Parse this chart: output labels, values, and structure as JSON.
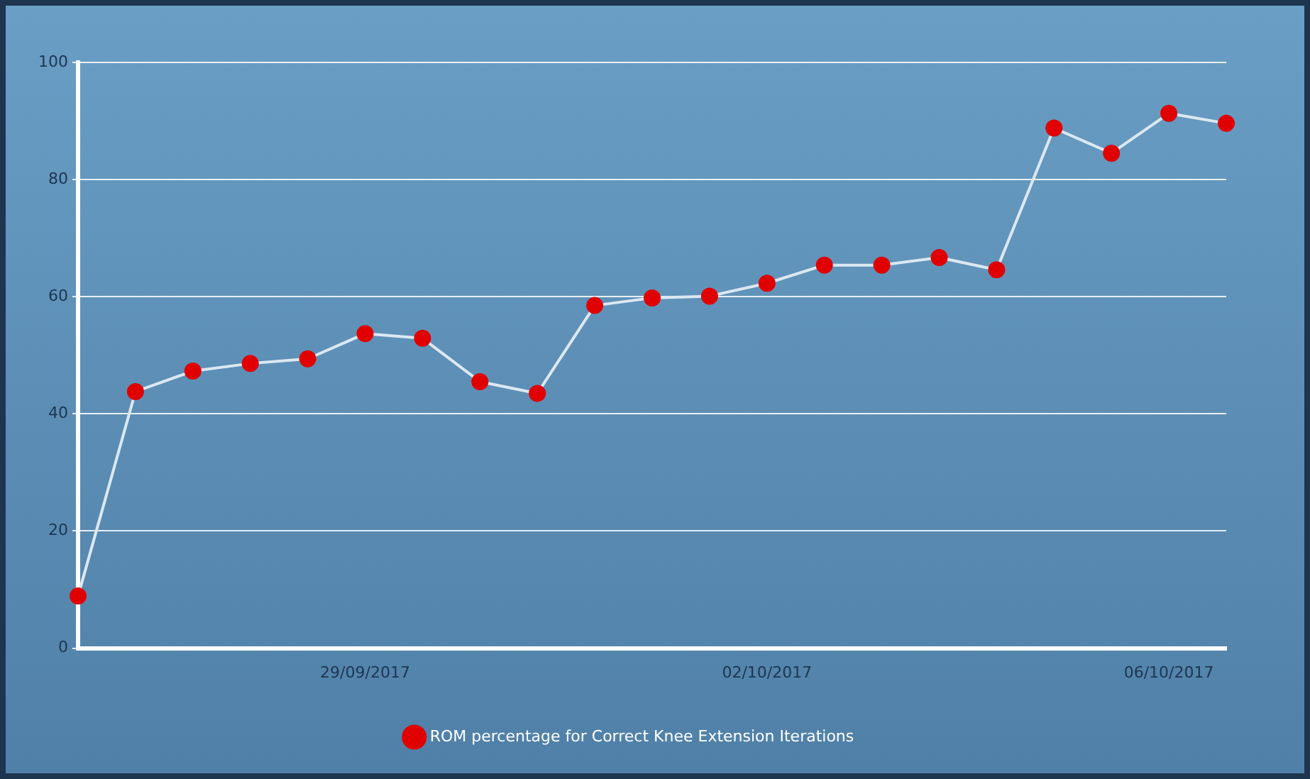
{
  "chart_data": {
    "type": "line",
    "categories": [
      null,
      null,
      null,
      null,
      null,
      "29/09/2017",
      null,
      null,
      null,
      null,
      null,
      null,
      "02/10/2017",
      null,
      null,
      null,
      null,
      null,
      null,
      "06/10/2017",
      null
    ],
    "series": [
      {
        "name": "ROM percentage for Correct Knee Extension Iterations",
        "color": "#dce8f2",
        "colors": [
          "#e00000",
          "#e00000",
          "#e00000",
          "#e00000",
          "#e00000",
          "#e00000",
          "#e00000",
          "#e00000",
          "#e00000",
          "#e00000",
          "#e00000",
          "#e00000",
          "#e00000",
          "#e00000",
          "#e00000",
          "#e00000",
          "#e00000",
          "#e00000",
          "#e00000",
          "#e00000",
          "#e00000"
        ],
        "values": [
          8.9,
          43.8,
          47.3,
          48.6,
          49.4,
          53.7,
          52.9,
          45.5,
          43.5,
          58.5,
          59.8,
          60.1,
          62.3,
          65.4,
          65.4,
          66.7,
          64.6,
          88.8,
          84.5,
          91.3,
          89.6
        ]
      }
    ],
    "ylim": [
      0,
      100
    ],
    "yticks": [
      0,
      20,
      40,
      60,
      80,
      100
    ],
    "grid": "y",
    "legend": "bottom",
    "marker": "circle",
    "line_style": "solid"
  }
}
